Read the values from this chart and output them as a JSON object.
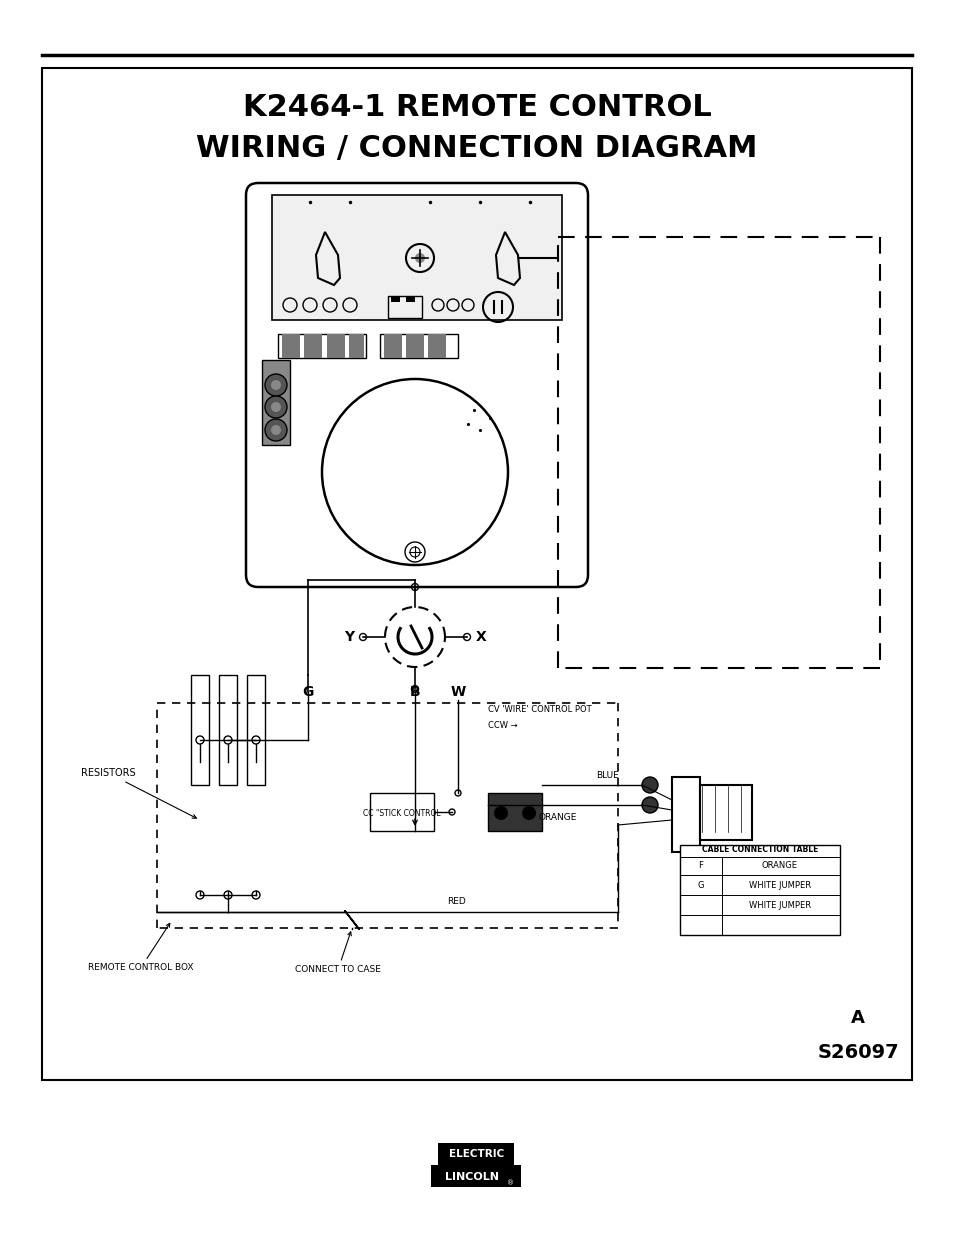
{
  "title_line1": "K2464-1 REMOTE CONTROL",
  "title_line2": "WIRING / CONNECTION DIAGRAM",
  "ref_a": "A",
  "ref_s": "S26097",
  "bg_color": "#ffffff",
  "label_resistors": "RESISTORS",
  "label_cc": "CC \"STICK CONTROL",
  "label_cv": "CV 'WIRE' CONTROL POT",
  "label_ccw": "CCW →",
  "label_blue": "BLUE",
  "label_orange": "ORANGE",
  "label_red": "RED",
  "label_remote": "REMOTE CONTROL BOX",
  "label_connect": "CONNECT TO CASE",
  "label_cable_tbl": "CABLE CONNECTION TABLE",
  "tbl_f": "F",
  "tbl_g": "G",
  "tbl_f_val": "ORANGE",
  "tbl_g_val": "WHITE JUMPER",
  "tbl_h_val": "WHITE JUMPER",
  "logo_text1": "LINCOLN",
  "logo_reg": "®",
  "logo_text2": "ELECTRIC"
}
